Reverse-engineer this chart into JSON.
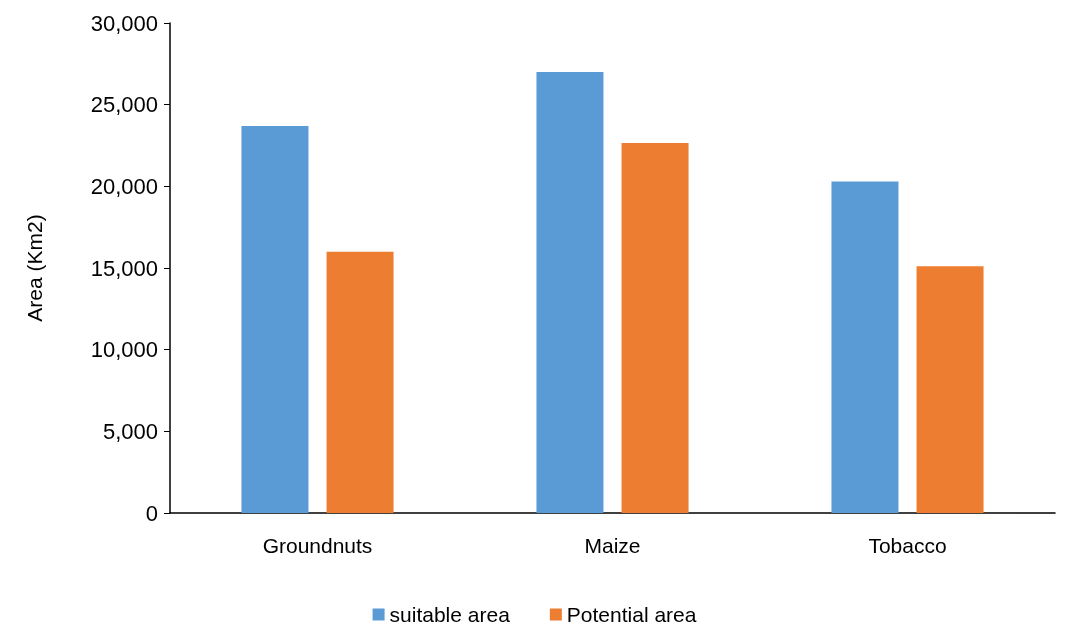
{
  "chart_data": {
    "type": "bar",
    "ylabel": "Area (Km2)",
    "categories": [
      "Groundnuts",
      "Maize",
      "Tobacco"
    ],
    "series": [
      {
        "name": "suitable area",
        "color": "#5b9bd5",
        "values": [
          23700,
          27000,
          20300
        ]
      },
      {
        "name": "Potential area",
        "color": "#ed7d31",
        "values": [
          16000,
          22650,
          15100
        ]
      }
    ],
    "ylim": [
      0,
      30000
    ],
    "yticks": [
      {
        "value": 0,
        "label": "0"
      },
      {
        "value": 5000,
        "label": "5,000"
      },
      {
        "value": 10000,
        "label": "10,000"
      },
      {
        "value": 15000,
        "label": "15,000"
      },
      {
        "value": 20000,
        "label": "20,000"
      },
      {
        "value": 25000,
        "label": "25,000"
      },
      {
        "value": 30000,
        "label": "30,000"
      }
    ],
    "grid": false,
    "legend": "bottom"
  }
}
